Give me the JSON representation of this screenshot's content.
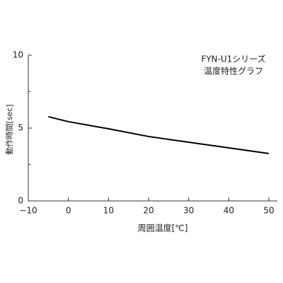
{
  "chart_data": {
    "type": "line",
    "title": "FYN-U1シリーズ",
    "subtitle": "温度特性グラフ",
    "x_label": "周囲温度[℃]",
    "y_label": "動作時間[sec]",
    "x": [
      -5,
      0,
      10,
      20,
      30,
      40,
      50
    ],
    "series": [
      {
        "name": "FYN-U1",
        "color": "#000000",
        "values": [
          5.78,
          5.44,
          4.95,
          4.42,
          4.03,
          3.64,
          3.25
        ]
      }
    ],
    "xlim": [
      -10,
      50
    ],
    "xticks": [
      {
        "value": -10,
        "label": "−10"
      },
      0,
      10,
      20,
      30,
      40,
      50
    ],
    "ylim": [
      0,
      10
    ],
    "yticks": [
      0,
      5,
      10
    ],
    "yticks_minor": [
      2.5,
      7.5
    ]
  }
}
